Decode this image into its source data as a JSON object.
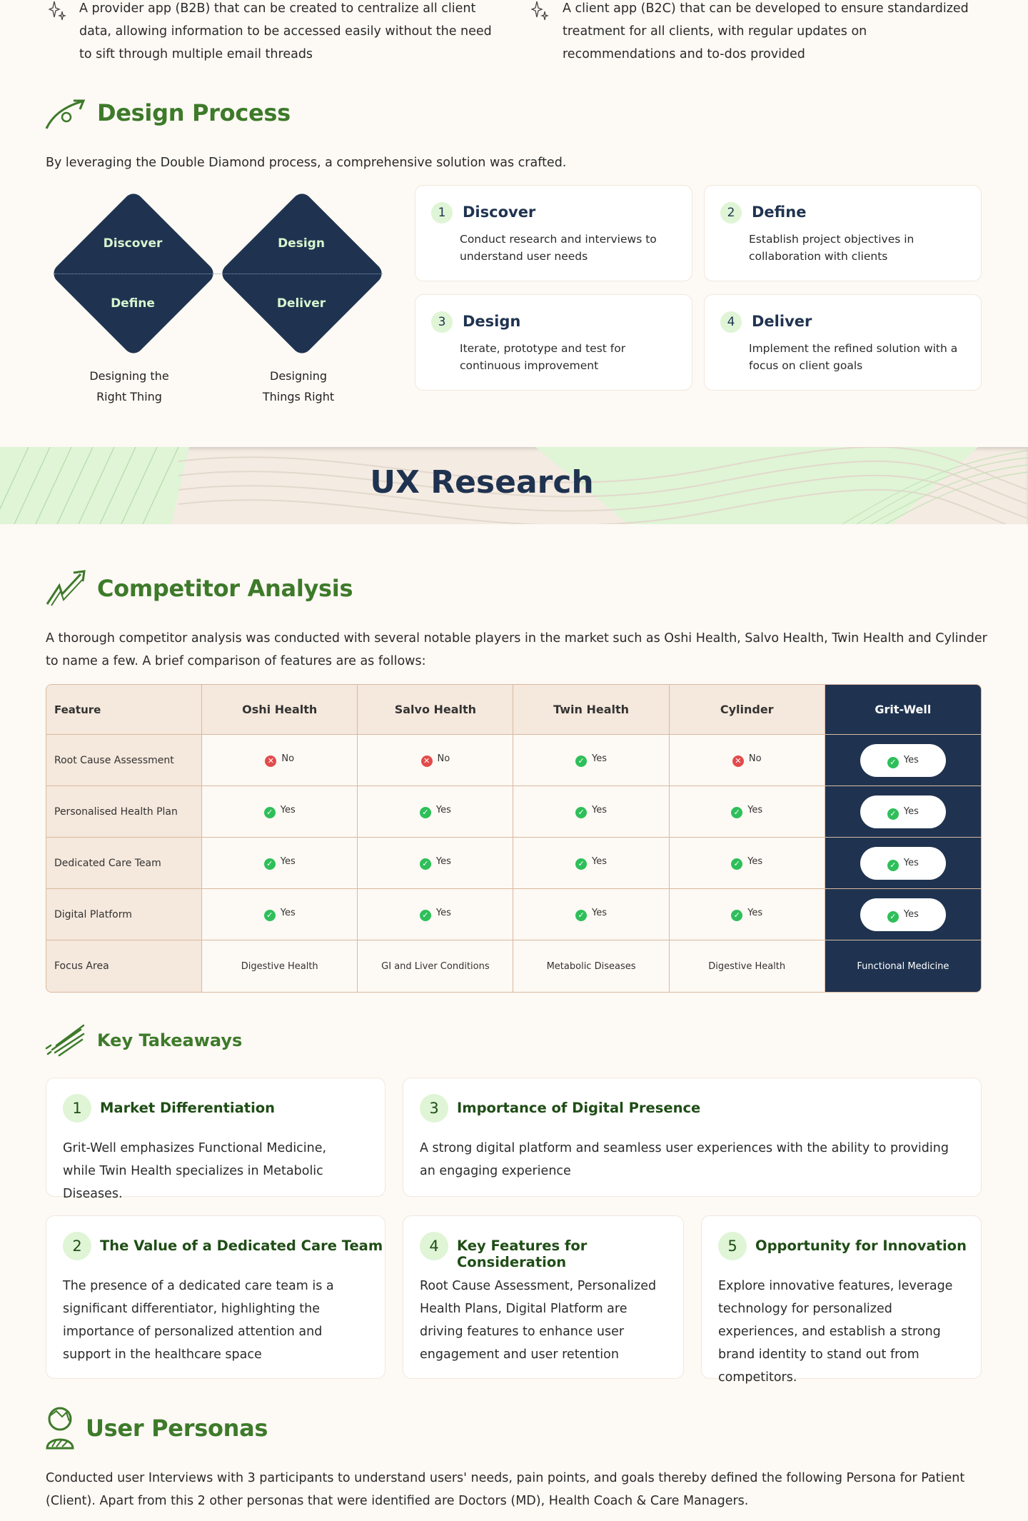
{
  "intro_bullets": [
    {
      "icon": "sparkle-icon",
      "text": "A provider app (B2B) that can be created to centralize all client data, allowing information to be accessed easily without the need to sift through multiple email threads"
    },
    {
      "icon": "sparkle-icon",
      "text": "A client app (B2C) that can be developed to ensure standardized treatment for all clients, with regular updates on recommendations and to-dos provided"
    }
  ],
  "design_process": {
    "title": "Design Process",
    "intro": "By leveraging the Double Diamond process, a comprehensive solution was crafted.",
    "diamonds": [
      {
        "top": "Discover",
        "bottom": "Define",
        "caption_line1": "Designing the",
        "caption_line2": "Right Thing"
      },
      {
        "top": "Design",
        "bottom": "Deliver",
        "caption_line1": "Designing",
        "caption_line2": "Things Right"
      }
    ],
    "steps": [
      {
        "num": "1",
        "title": "Discover",
        "body": "Conduct research and interviews to understand user needs"
      },
      {
        "num": "2",
        "title": "Define",
        "body": "Establish project objectives in collaboration with clients"
      },
      {
        "num": "3",
        "title": "Design",
        "body": "Iterate, prototype and test for continuous improvement"
      },
      {
        "num": "4",
        "title": "Deliver",
        "body": "Implement the refined solution with a focus on client goals"
      }
    ]
  },
  "banner": {
    "title": "UX Research"
  },
  "competitor": {
    "title": "Competitor Analysis",
    "intro": "A thorough competitor analysis was conducted with several notable players in the market such as Oshi Health, Salvo Health, Twin Health and Cylinder to name a few. A brief comparison of features are as follows:",
    "headers": [
      "Feature",
      "Oshi Health",
      "Salvo Health",
      "Twin Health",
      "Cylinder",
      "Grit-Well"
    ],
    "rows": [
      {
        "feature": "Root Cause Assessment",
        "values": [
          "No",
          "No",
          "Yes",
          "No",
          "Yes"
        ]
      },
      {
        "feature": "Personalised Health Plan",
        "values": [
          "Yes",
          "Yes",
          "Yes",
          "Yes",
          "Yes"
        ]
      },
      {
        "feature": "Dedicated Care Team",
        "values": [
          "Yes",
          "Yes",
          "Yes",
          "Yes",
          "Yes"
        ]
      },
      {
        "feature": "Digital Platform",
        "values": [
          "Yes",
          "Yes",
          "Yes",
          "Yes",
          "Yes"
        ]
      },
      {
        "feature": "Focus Area",
        "values": [
          "Digestive Health",
          "GI and Liver Conditions",
          "Metabolic Diseases",
          "Digestive Health",
          "Functional Medicine"
        ]
      }
    ],
    "colors": {
      "yes": "#2fbf5a",
      "no": "#e24b4b",
      "highlight": "#1f3350"
    }
  },
  "takeaways": {
    "title": "Key Takeaways",
    "items": [
      {
        "num": "1",
        "title": "Market Differentiation",
        "body": "Grit-Well emphasizes Functional Medicine, while Twin Health specializes in Metabolic Diseases."
      },
      {
        "num": "3",
        "title": "Importance of Digital Presence",
        "body": "A strong digital platform and seamless user experiences with the ability to providing an engaging experience"
      },
      {
        "num": "2",
        "title": "The Value of a Dedicated Care Team",
        "body": "The presence of a dedicated care team is a significant differentiator, highlighting the importance of personalized attention and support in the healthcare space"
      },
      {
        "num": "4",
        "title": "Key Features for Consideration",
        "body": "Root Cause Assessment, Personalized Health Plans, Digital Platform are driving features to enhance user engagement and user retention"
      },
      {
        "num": "5",
        "title": "Opportunity for Innovation",
        "body": "Explore innovative features, leverage technology for personalized experiences, and establish a strong brand identity to stand out from competitors."
      }
    ]
  },
  "personas": {
    "title": "User Personas",
    "intro": "Conducted user Interviews with 3 participants to understand users' needs, pain points, and goals thereby defined the following Persona for Patient (Client). Apart from this 2 other personas that were identified are Doctors (MD), Health Coach & Care Managers."
  },
  "theme": {
    "green": "#3d7a2a",
    "navy": "#1f3350",
    "mint": "#dff5d6",
    "background": "#fdf9f4"
  }
}
